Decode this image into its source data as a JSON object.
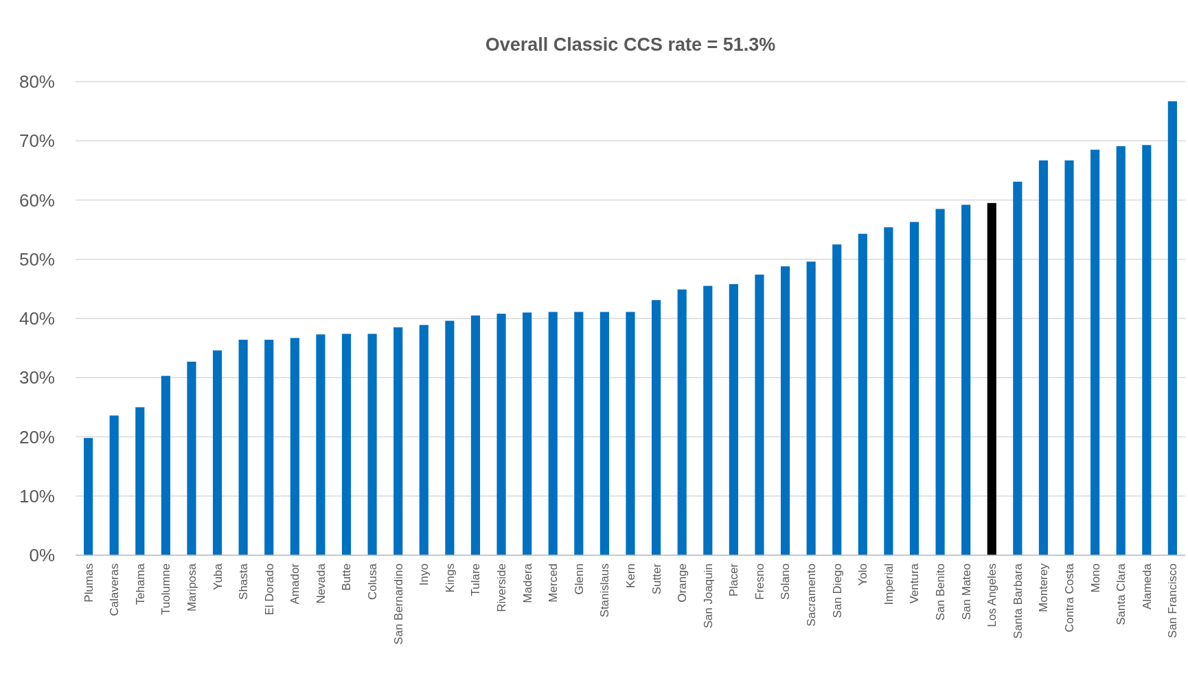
{
  "chart_data": {
    "type": "bar",
    "title": "Overall Classic CCS rate = 51.3%",
    "categories": [
      "Plumas",
      "Calaveras",
      "Tehama",
      "Tuolumne",
      "Mariposa",
      "Yuba",
      "Shasta",
      "El Dorado",
      "Amador",
      "Nevada",
      "Butte",
      "Colusa",
      "San Bernardino",
      "Inyo",
      "Kings",
      "Tulare",
      "Riverside",
      "Madera",
      "Merced",
      "Glenn",
      "Stanislaus",
      "Kern",
      "Sutter",
      "Orange",
      "San Joaquin",
      "Placer",
      "Fresno",
      "Solano",
      "Sacramento",
      "San Diego",
      "Yolo",
      "Imperial",
      "Ventura",
      "San Benito",
      "San Mateo",
      "Los Angeles",
      "Santa Barbara",
      "Monterey",
      "Contra Costa",
      "Mono",
      "Santa Clara",
      "Alameda",
      "San Francisco"
    ],
    "values": [
      19.8,
      23.6,
      25.0,
      30.3,
      32.7,
      34.6,
      36.4,
      36.4,
      36.7,
      37.3,
      37.4,
      37.4,
      38.5,
      38.9,
      39.6,
      40.5,
      40.8,
      41.0,
      41.1,
      41.1,
      41.1,
      41.1,
      43.1,
      44.9,
      45.5,
      45.8,
      47.4,
      48.8,
      49.6,
      52.5,
      54.3,
      55.4,
      56.3,
      58.5,
      59.2,
      59.5,
      63.1,
      66.7,
      66.7,
      68.5,
      69.1,
      69.3,
      76.7
    ],
    "colors": [
      "#0070c0",
      "#0070c0",
      "#0070c0",
      "#0070c0",
      "#0070c0",
      "#0070c0",
      "#0070c0",
      "#0070c0",
      "#0070c0",
      "#0070c0",
      "#0070c0",
      "#0070c0",
      "#0070c0",
      "#0070c0",
      "#0070c0",
      "#0070c0",
      "#0070c0",
      "#0070c0",
      "#0070c0",
      "#0070c0",
      "#0070c0",
      "#0070c0",
      "#0070c0",
      "#0070c0",
      "#0070c0",
      "#0070c0",
      "#0070c0",
      "#0070c0",
      "#0070c0",
      "#0070c0",
      "#0070c0",
      "#0070c0",
      "#0070c0",
      "#0070c0",
      "#0070c0",
      "#000000",
      "#0070c0",
      "#0070c0",
      "#0070c0",
      "#0070c0",
      "#0070c0",
      "#0070c0",
      "#0070c0"
    ],
    "ylim": [
      0,
      80
    ],
    "yticks": [
      {
        "value": 0,
        "label": "0%"
      },
      {
        "value": 10,
        "label": "10%"
      },
      {
        "value": 20,
        "label": "20%"
      },
      {
        "value": 30,
        "label": "30%"
      },
      {
        "value": 40,
        "label": "40%"
      },
      {
        "value": 50,
        "label": "50%"
      },
      {
        "value": 60,
        "label": "60%"
      },
      {
        "value": 70,
        "label": "70%"
      },
      {
        "value": 80,
        "label": "80%"
      }
    ],
    "grid": "y"
  }
}
